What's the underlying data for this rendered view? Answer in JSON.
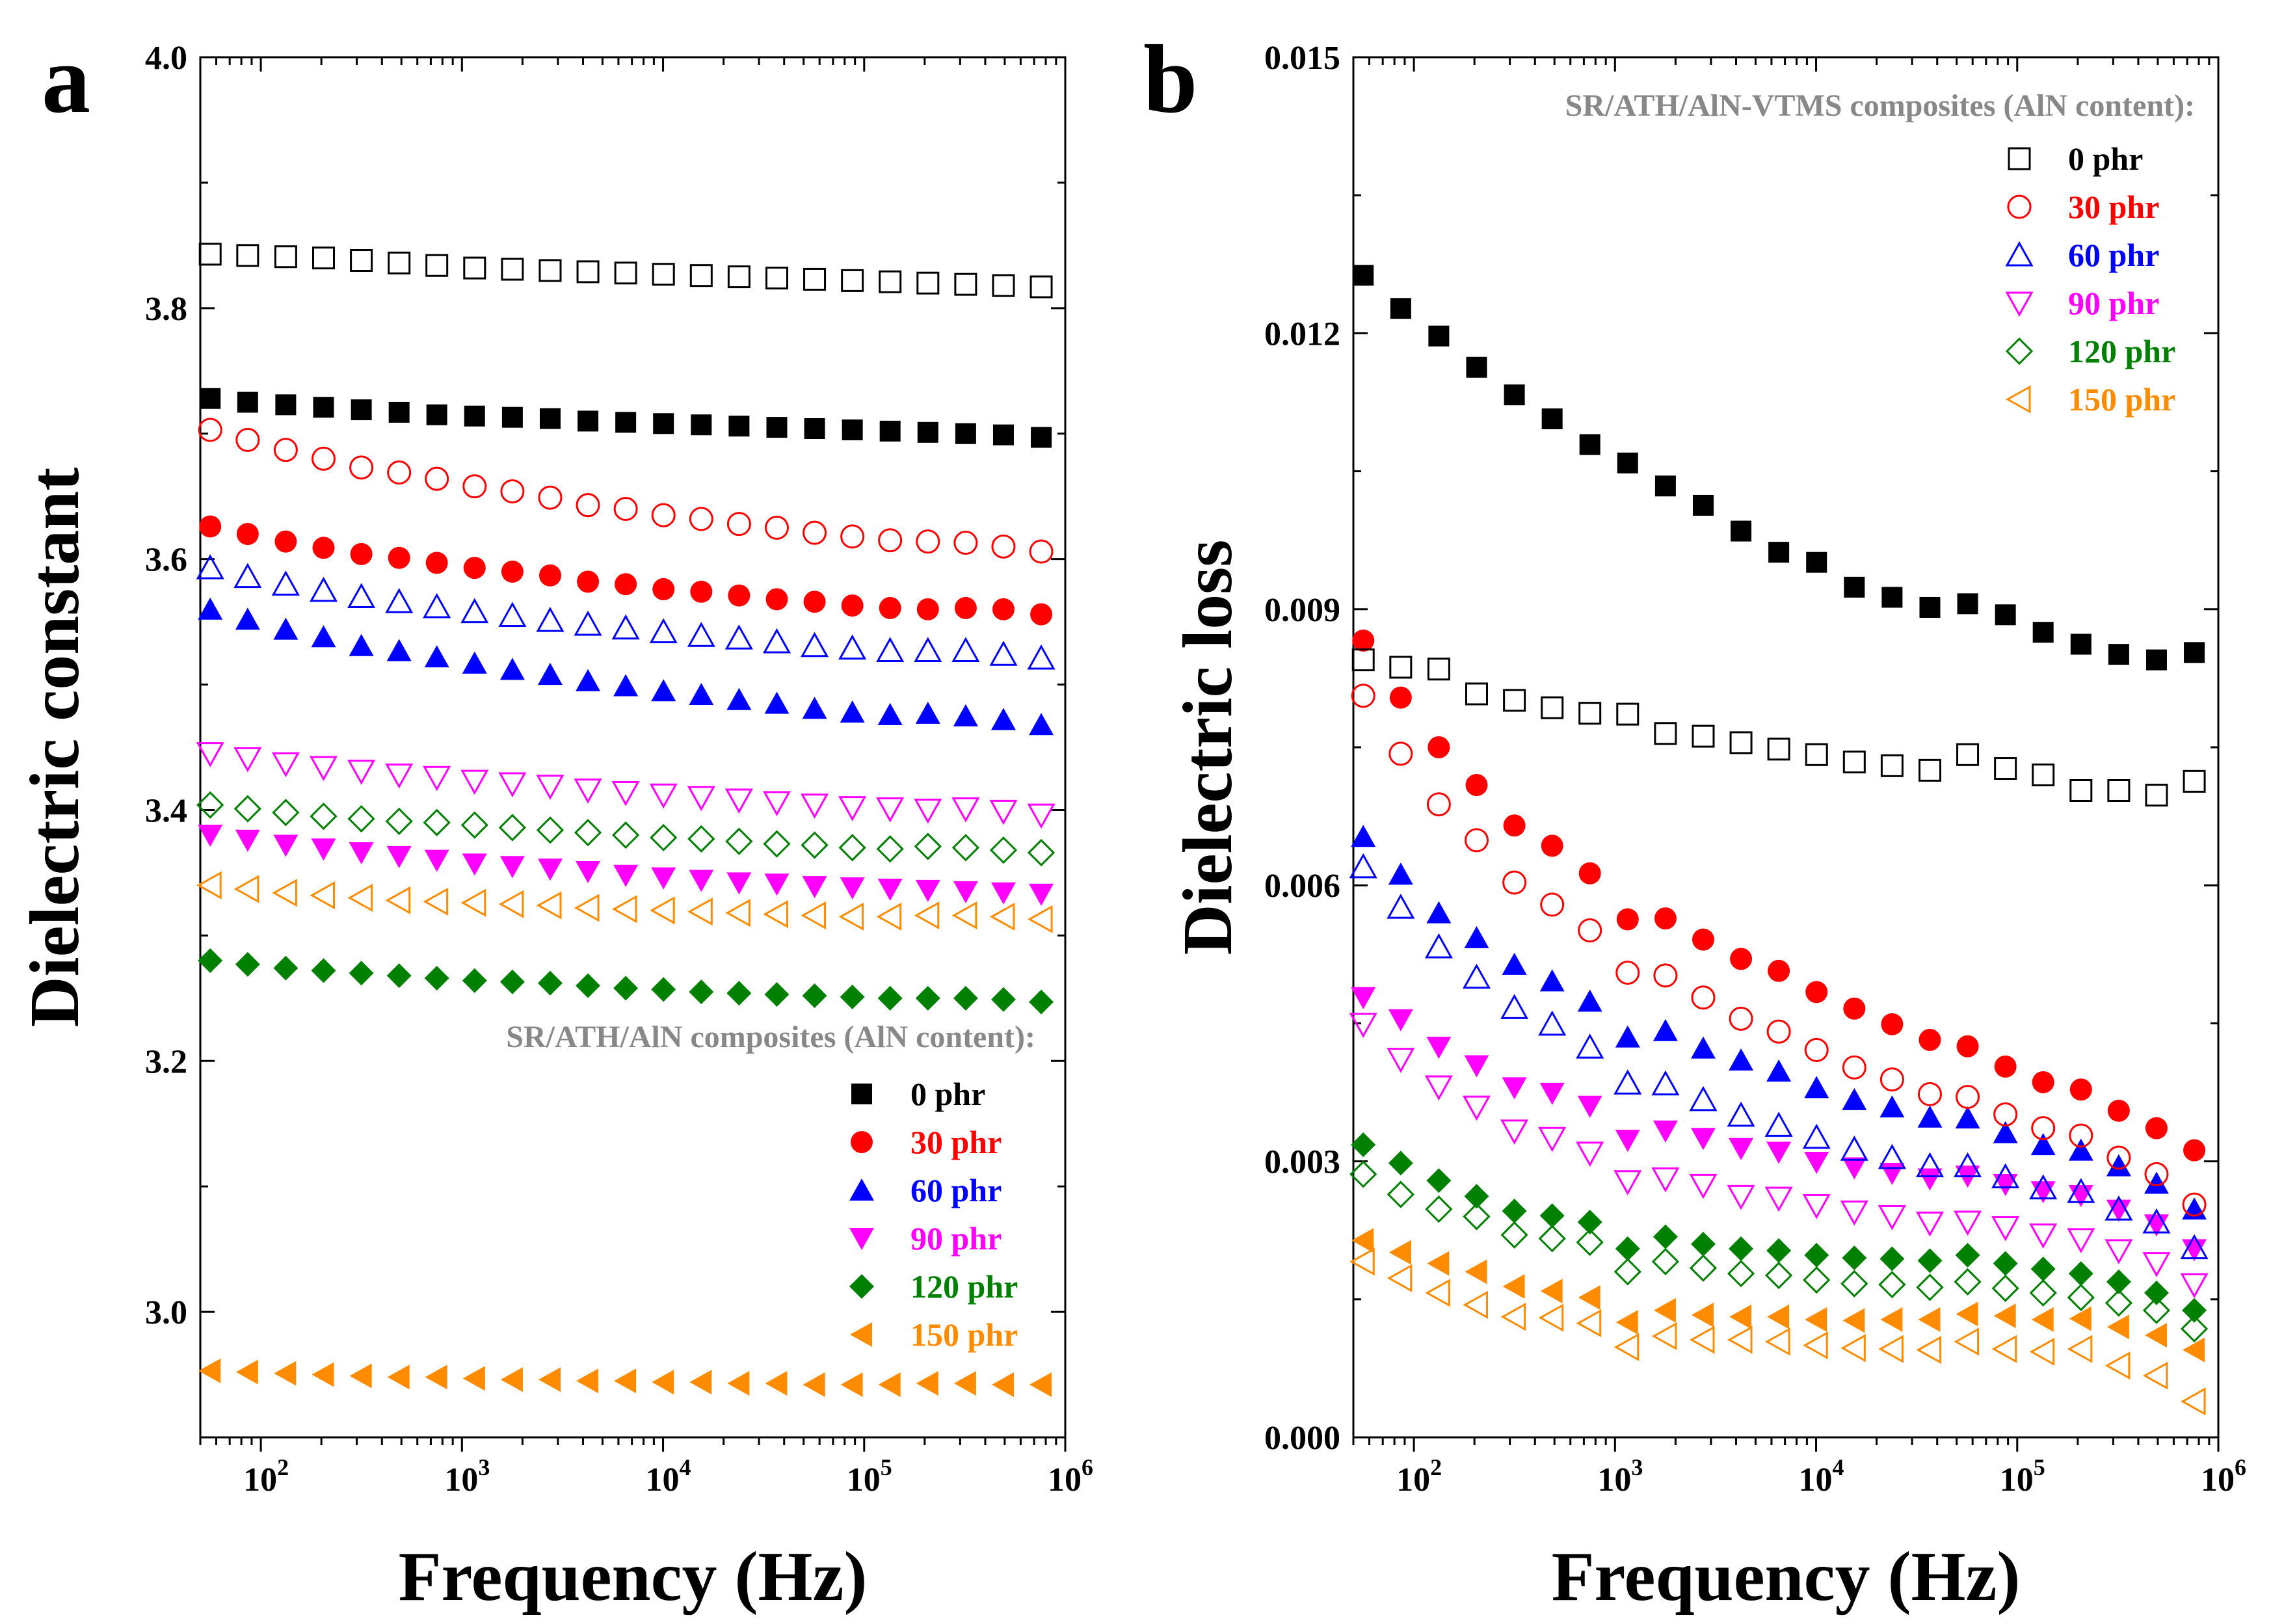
{
  "chart_data": [
    {
      "type": "scatter",
      "panel_label": "a",
      "xlabel": "Frequency (Hz)",
      "ylabel": "Dielectric constant",
      "xscale": "log",
      "xlim": [
        50,
        1000000
      ],
      "ylim": [
        2.9,
        4.0
      ],
      "yticks": [
        "3.0",
        "3.2",
        "3.4",
        "3.6",
        "3.8",
        "4.0"
      ],
      "xticks": [
        {
          "base": "10",
          "exp": "2"
        },
        {
          "base": "10",
          "exp": "3"
        },
        {
          "base": "10",
          "exp": "4"
        },
        {
          "base": "10",
          "exp": "5"
        },
        {
          "base": "10",
          "exp": "6"
        }
      ],
      "legend_placement": "bottom-right",
      "frequencies": [
        56,
        86,
        133,
        205,
        316,
        487,
        750,
        1156,
        1782,
        2746,
        4232,
        6521,
        10050,
        15490,
        23870,
        36790,
        56690,
        87370,
        134600,
        207500,
        319800,
        492800,
        759500
      ],
      "legend_groups": [
        {
          "title": "SR/ATH/AlN composites (AlN content):",
          "title_color": "#888888",
          "series": [
            {
              "name": "0 phr",
              "color": "#000000",
              "marker": "square",
              "filled": true,
              "values": [
                3.728,
                3.725,
                3.723,
                3.721,
                3.719,
                3.717,
                3.715,
                3.714,
                3.713,
                3.712,
                3.71,
                3.709,
                3.708,
                3.707,
                3.706,
                3.705,
                3.704,
                3.703,
                3.702,
                3.701,
                3.7,
                3.699,
                3.697
              ]
            },
            {
              "name": "30 phr",
              "color": "#ff0000",
              "marker": "circle",
              "filled": true,
              "values": [
                3.626,
                3.62,
                3.614,
                3.609,
                3.604,
                3.601,
                3.597,
                3.593,
                3.59,
                3.587,
                3.582,
                3.58,
                3.576,
                3.574,
                3.571,
                3.568,
                3.566,
                3.563,
                3.561,
                3.56,
                3.561,
                3.56,
                3.556
              ]
            },
            {
              "name": "60 phr",
              "color": "#0000ff",
              "marker": "triangle-up",
              "filled": true,
              "values": [
                3.56,
                3.552,
                3.544,
                3.538,
                3.531,
                3.527,
                3.522,
                3.517,
                3.512,
                3.508,
                3.503,
                3.499,
                3.495,
                3.492,
                3.488,
                3.485,
                3.481,
                3.478,
                3.476,
                3.477,
                3.475,
                3.472,
                3.468
              ]
            },
            {
              "name": "90 phr",
              "color": "#ff00ff",
              "marker": "triangle-down",
              "filled": true,
              "values": [
                3.38,
                3.376,
                3.372,
                3.369,
                3.366,
                3.363,
                3.36,
                3.357,
                3.355,
                3.353,
                3.351,
                3.348,
                3.346,
                3.344,
                3.342,
                3.341,
                3.339,
                3.338,
                3.337,
                3.336,
                3.335,
                3.334,
                3.333
              ]
            },
            {
              "name": "120 phr",
              "color": "#008000",
              "marker": "diamond",
              "filled": true,
              "values": [
                3.28,
                3.277,
                3.274,
                3.272,
                3.27,
                3.268,
                3.266,
                3.264,
                3.263,
                3.262,
                3.26,
                3.258,
                3.257,
                3.255,
                3.254,
                3.253,
                3.252,
                3.251,
                3.25,
                3.25,
                3.25,
                3.249,
                3.247
              ]
            },
            {
              "name": "150 phr",
              "color": "#ff8c00",
              "marker": "triangle-left",
              "filled": true,
              "values": [
                2.953,
                2.952,
                2.951,
                2.95,
                2.949,
                2.948,
                2.948,
                2.947,
                2.946,
                2.946,
                2.945,
                2.945,
                2.944,
                2.944,
                2.943,
                2.943,
                2.942,
                2.942,
                2.942,
                2.943,
                2.943,
                2.942,
                2.942
              ]
            }
          ]
        }
      ],
      "unlabeled_series": [
        {
          "name": "0 phr (VTMS)",
          "color": "#000000",
          "marker": "square",
          "filled": false,
          "values": [
            3.843,
            3.842,
            3.841,
            3.84,
            3.838,
            3.836,
            3.834,
            3.832,
            3.831,
            3.83,
            3.829,
            3.828,
            3.827,
            3.826,
            3.825,
            3.824,
            3.823,
            3.822,
            3.821,
            3.82,
            3.819,
            3.818,
            3.817
          ]
        },
        {
          "name": "30 phr (VTMS)",
          "color": "#ff0000",
          "marker": "circle",
          "filled": false,
          "values": [
            3.703,
            3.695,
            3.687,
            3.68,
            3.673,
            3.669,
            3.664,
            3.658,
            3.654,
            3.649,
            3.643,
            3.64,
            3.635,
            3.632,
            3.628,
            3.625,
            3.621,
            3.618,
            3.615,
            3.614,
            3.613,
            3.61,
            3.606
          ]
        },
        {
          "name": "60 phr (VTMS)",
          "color": "#0000ff",
          "marker": "triangle-up",
          "filled": false,
          "values": [
            3.593,
            3.586,
            3.58,
            3.575,
            3.57,
            3.566,
            3.562,
            3.558,
            3.555,
            3.551,
            3.548,
            3.545,
            3.542,
            3.539,
            3.537,
            3.534,
            3.531,
            3.529,
            3.527,
            3.527,
            3.527,
            3.524,
            3.521
          ]
        },
        {
          "name": "90 phr (VTMS)",
          "color": "#ff00ff",
          "marker": "triangle-down",
          "filled": false,
          "values": [
            3.445,
            3.441,
            3.437,
            3.434,
            3.431,
            3.428,
            3.426,
            3.423,
            3.421,
            3.419,
            3.416,
            3.414,
            3.412,
            3.41,
            3.408,
            3.406,
            3.404,
            3.402,
            3.401,
            3.4,
            3.401,
            3.399,
            3.396
          ]
        },
        {
          "name": "120 phr (VTMS)",
          "color": "#008000",
          "marker": "diamond",
          "filled": false,
          "values": [
            3.404,
            3.401,
            3.398,
            3.395,
            3.393,
            3.391,
            3.39,
            3.388,
            3.386,
            3.384,
            3.382,
            3.38,
            3.378,
            3.377,
            3.375,
            3.373,
            3.372,
            3.37,
            3.369,
            3.371,
            3.37,
            3.368,
            3.366
          ]
        },
        {
          "name": "150 phr (VTMS)",
          "color": "#ff8c00",
          "marker": "triangle-left",
          "filled": false,
          "values": [
            3.34,
            3.337,
            3.334,
            3.332,
            3.33,
            3.328,
            3.327,
            3.326,
            3.325,
            3.324,
            3.322,
            3.321,
            3.32,
            3.319,
            3.318,
            3.317,
            3.316,
            3.315,
            3.315,
            3.316,
            3.316,
            3.315,
            3.313
          ]
        }
      ]
    },
    {
      "type": "scatter",
      "panel_label": "b",
      "xlabel": "Frequency (Hz)",
      "ylabel": "Dielectric loss",
      "xscale": "log",
      "xlim": [
        50,
        1000000
      ],
      "ylim": [
        0.0,
        0.015
      ],
      "yticks": [
        "0.000",
        "0.003",
        "0.006",
        "0.009",
        "0.012",
        "0.015"
      ],
      "xticks": [
        {
          "base": "10",
          "exp": "2"
        },
        {
          "base": "10",
          "exp": "3"
        },
        {
          "base": "10",
          "exp": "4"
        },
        {
          "base": "10",
          "exp": "5"
        },
        {
          "base": "10",
          "exp": "6"
        }
      ],
      "legend_placement": "top-right",
      "frequencies": [
        56,
        86,
        133,
        205,
        316,
        487,
        750,
        1156,
        1782,
        2746,
        4232,
        6521,
        10050,
        15490,
        23870,
        36790,
        56690,
        87370,
        134600,
        207500,
        319800,
        492800,
        759500
      ],
      "legend_groups": [
        {
          "title": "SR/ATH/AlN-VTMS composites (AlN content):",
          "title_color": "#888888",
          "series": [
            {
              "name": "0 phr",
              "color": "#000000",
              "marker": "square",
              "filled": false,
              "values": [
                0.00845,
                0.00837,
                0.00835,
                0.00808,
                0.00801,
                0.00793,
                0.00787,
                0.00786,
                0.00765,
                0.00762,
                0.00755,
                0.00748,
                0.00742,
                0.00734,
                0.0073,
                0.00725,
                0.00742,
                0.00727,
                0.0072,
                0.00703,
                0.00703,
                0.00698,
                0.00713
              ]
            },
            {
              "name": "30 phr",
              "color": "#ff0000",
              "marker": "circle",
              "filled": false,
              "values": [
                0.00806,
                0.00743,
                0.00688,
                0.00649,
                0.00603,
                0.00579,
                0.00551,
                0.00505,
                0.00502,
                0.00478,
                0.00455,
                0.00441,
                0.00421,
                0.00402,
                0.00389,
                0.00373,
                0.0037,
                0.00351,
                0.00336,
                0.00328,
                0.00304,
                0.00286,
                0.00253
              ]
            },
            {
              "name": "60 phr",
              "color": "#0000ff",
              "marker": "triangle-up",
              "filled": false,
              "values": [
                0.0062,
                0.00576,
                0.00533,
                0.005,
                0.00467,
                0.00449,
                0.00424,
                0.00385,
                0.00384,
                0.00367,
                0.0035,
                0.00339,
                0.00326,
                0.00313,
                0.00304,
                0.00295,
                0.00295,
                0.00283,
                0.00271,
                0.00267,
                0.00248,
                0.00234,
                0.00206
              ]
            },
            {
              "name": "90 phr",
              "color": "#ff00ff",
              "marker": "triangle-down",
              "filled": false,
              "values": [
                0.00449,
                0.00411,
                0.00381,
                0.00359,
                0.00333,
                0.00325,
                0.00309,
                0.00278,
                0.00281,
                0.00274,
                0.00262,
                0.0026,
                0.00252,
                0.00245,
                0.0024,
                0.00233,
                0.00234,
                0.00228,
                0.0022,
                0.00215,
                0.00203,
                0.00189,
                0.00166
              ]
            },
            {
              "name": "120 phr",
              "color": "#008000",
              "marker": "diamond",
              "filled": false,
              "values": [
                0.00286,
                0.00264,
                0.00248,
                0.0024,
                0.0022,
                0.00216,
                0.00212,
                0.0018,
                0.00191,
                0.00184,
                0.00178,
                0.00176,
                0.00171,
                0.00167,
                0.00166,
                0.00163,
                0.00169,
                0.00162,
                0.00157,
                0.00152,
                0.00146,
                0.00138,
                0.00118
              ]
            },
            {
              "name": "150 phr",
              "color": "#ff8c00",
              "marker": "triangle-left",
              "filled": false,
              "values": [
                0.00191,
                0.00173,
                0.00157,
                0.00144,
                0.00131,
                0.0013,
                0.00124,
                0.00098,
                0.0011,
                0.00106,
                0.00106,
                0.00104,
                0.001,
                0.00097,
                0.00096,
                0.00095,
                0.00104,
                0.00096,
                0.00093,
                0.00096,
                0.00078,
                0.00067,
                0.00039
              ]
            }
          ]
        }
      ],
      "unlabeled_series": [
        {
          "name": "0 phr (untreated)",
          "color": "#000000",
          "marker": "square",
          "filled": true,
          "values": [
            0.01263,
            0.01227,
            0.01197,
            0.01163,
            0.01133,
            0.01107,
            0.01079,
            0.01059,
            0.01034,
            0.01013,
            0.00985,
            0.00962,
            0.00951,
            0.00924,
            0.00913,
            0.00902,
            0.00906,
            0.00894,
            0.00875,
            0.00862,
            0.00851,
            0.00845,
            0.00853
          ]
        },
        {
          "name": "30 phr (untreated)",
          "color": "#ff0000",
          "marker": "circle",
          "filled": true,
          "values": [
            0.00866,
            0.00804,
            0.0075,
            0.00709,
            0.00665,
            0.00643,
            0.00613,
            0.00563,
            0.00564,
            0.00541,
            0.0052,
            0.00507,
            0.00484,
            0.00466,
            0.00449,
            0.00432,
            0.00425,
            0.00403,
            0.00386,
            0.00378,
            0.00355,
            0.00336,
            0.00312
          ]
        },
        {
          "name": "60 phr (untreated)",
          "color": "#0000ff",
          "marker": "triangle-up",
          "filled": true,
          "values": [
            0.00653,
            0.00612,
            0.0057,
            0.00543,
            0.00514,
            0.00496,
            0.00474,
            0.00435,
            0.00442,
            0.00423,
            0.0041,
            0.00398,
            0.0038,
            0.00367,
            0.00359,
            0.00348,
            0.00347,
            0.00331,
            0.00318,
            0.00312,
            0.00295,
            0.00276,
            0.00248
          ]
        },
        {
          "name": "90 phr (untreated)",
          "color": "#ff00ff",
          "marker": "triangle-down",
          "filled": true,
          "values": [
            0.00478,
            0.00454,
            0.00424,
            0.00404,
            0.0038,
            0.00374,
            0.0036,
            0.00323,
            0.00333,
            0.00325,
            0.00314,
            0.0031,
            0.00299,
            0.00293,
            0.00287,
            0.00281,
            0.00284,
            0.00275,
            0.00267,
            0.00263,
            0.00247,
            0.00231,
            0.00204
          ]
        },
        {
          "name": "120 phr (untreated)",
          "color": "#008000",
          "marker": "diamond",
          "filled": true,
          "values": [
            0.00318,
            0.00298,
            0.00279,
            0.00262,
            0.00246,
            0.00241,
            0.00234,
            0.00205,
            0.00218,
            0.0021,
            0.00205,
            0.00203,
            0.00198,
            0.00195,
            0.00194,
            0.00192,
            0.00198,
            0.00189,
            0.00183,
            0.00178,
            0.00169,
            0.00157,
            0.00138
          ]
        },
        {
          "name": "150 phr (untreated)",
          "color": "#ff8c00",
          "marker": "triangle-left",
          "filled": true,
          "values": [
            0.00214,
            0.00201,
            0.00189,
            0.0018,
            0.00164,
            0.00159,
            0.00152,
            0.00125,
            0.00138,
            0.00133,
            0.00131,
            0.00131,
            0.00128,
            0.00127,
            0.00128,
            0.00128,
            0.00134,
            0.00132,
            0.00128,
            0.00129,
            0.0012,
            0.00111,
            0.00095
          ]
        }
      ]
    }
  ]
}
